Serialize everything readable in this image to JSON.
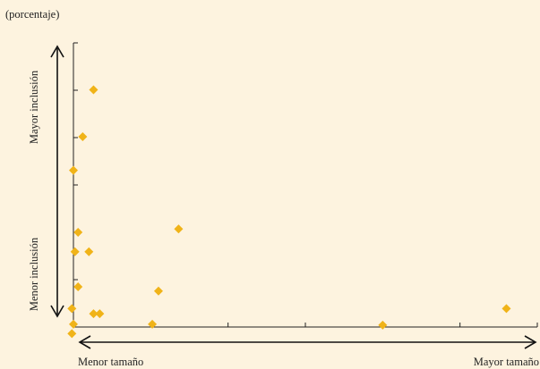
{
  "chart_data": {
    "type": "scatter",
    "unit_label": "(porcentaje)",
    "y_arrow_top_label": "Mayor inclusión",
    "y_arrow_bottom_label": "Menor inclusión",
    "x_arrow_left_label": "Menor tamaño",
    "x_arrow_right_label": "Mayor tamaño",
    "xlim": [
      0,
      30
    ],
    "ylim": [
      0,
      60
    ],
    "x_tick_count": 6,
    "y_tick_count": 6,
    "grid": false,
    "points": [
      {
        "x": 1.3,
        "y": 50.1
      },
      {
        "x": 0.6,
        "y": 40.2
      },
      {
        "x": 0.0,
        "y": 33.1
      },
      {
        "x": 6.8,
        "y": 20.7
      },
      {
        "x": 0.3,
        "y": 20.0
      },
      {
        "x": 0.1,
        "y": 15.9
      },
      {
        "x": 1.0,
        "y": 15.9
      },
      {
        "x": 0.3,
        "y": 8.5
      },
      {
        "x": 5.5,
        "y": 7.6
      },
      {
        "x": 20.0,
        "y": 0.4
      },
      {
        "x": 28.0,
        "y": 3.9
      },
      {
        "x": -0.1,
        "y": 3.9
      },
      {
        "x": 1.3,
        "y": 2.8
      },
      {
        "x": 1.7,
        "y": 2.8
      },
      {
        "x": 5.1,
        "y": 0.6
      },
      {
        "x": 0.0,
        "y": 0.6
      },
      {
        "x": -0.1,
        "y": -1.4
      }
    ],
    "colors": {
      "point": "#f0b318",
      "background": "#fdf3df"
    }
  }
}
